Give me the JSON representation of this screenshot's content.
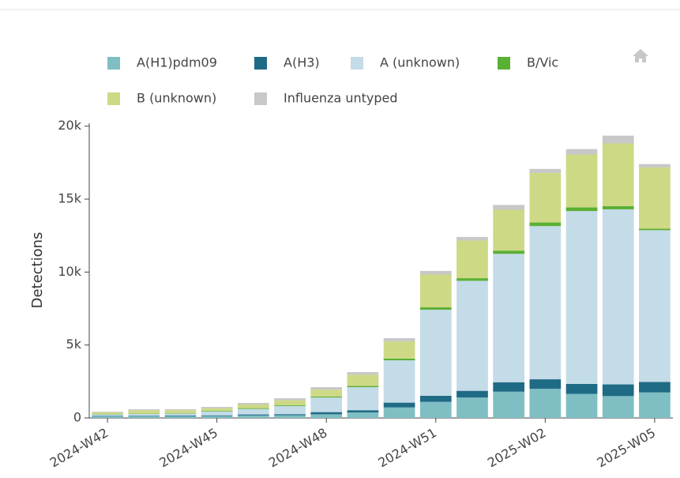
{
  "chart_data": {
    "type": "stacked-bar",
    "ylabel": "Detections",
    "categories": [
      "2024-W42",
      null,
      null,
      "2024-W45",
      null,
      null,
      "2024-W48",
      null,
      null,
      "2024-W51",
      null,
      null,
      "2025-W02",
      null,
      null,
      "2025-W05"
    ],
    "series": [
      {
        "name": "A(H1)pdm09",
        "color": "#7fbfc3",
        "values": [
          100,
          110,
          110,
          130,
          170,
          180,
          250,
          380,
          720,
          1100,
          1400,
          1800,
          2000,
          1650,
          1500,
          1750
        ]
      },
      {
        "name": "A(H3)",
        "color": "#1f6b85",
        "values": [
          40,
          40,
          50,
          50,
          70,
          80,
          150,
          150,
          330,
          420,
          460,
          650,
          650,
          680,
          800,
          720
        ]
      },
      {
        "name": "A (unknown)",
        "color": "#c4dbe8",
        "values": [
          110,
          130,
          140,
          270,
          380,
          560,
          1000,
          1580,
          2900,
          5900,
          7540,
          8800,
          10500,
          11850,
          12000,
          10400
        ]
      },
      {
        "name": "B/Vic",
        "color": "#5ab033",
        "values": [
          20,
          30,
          30,
          40,
          50,
          60,
          70,
          80,
          120,
          160,
          180,
          220,
          250,
          250,
          220,
          100
        ]
      },
      {
        "name": "B (unknown)",
        "color": "#cdd985",
        "values": [
          120,
          220,
          200,
          180,
          250,
          330,
          470,
          770,
          1180,
          2250,
          2580,
          2800,
          3400,
          3630,
          4300,
          4200
        ]
      },
      {
        "name": "Influenza untyped",
        "color": "#c8c8c8",
        "values": [
          40,
          70,
          70,
          90,
          110,
          140,
          170,
          180,
          220,
          250,
          250,
          330,
          270,
          370,
          530,
          230
        ]
      }
    ],
    "ylim": [
      0,
      20200
    ],
    "yticks": [
      0,
      {
        "value": 5000,
        "label": "5k"
      },
      {
        "value": 10000,
        "label": "10k"
      },
      {
        "value": 15000,
        "label": "15k"
      },
      {
        "value": 20000,
        "label": "20k"
      }
    ]
  }
}
